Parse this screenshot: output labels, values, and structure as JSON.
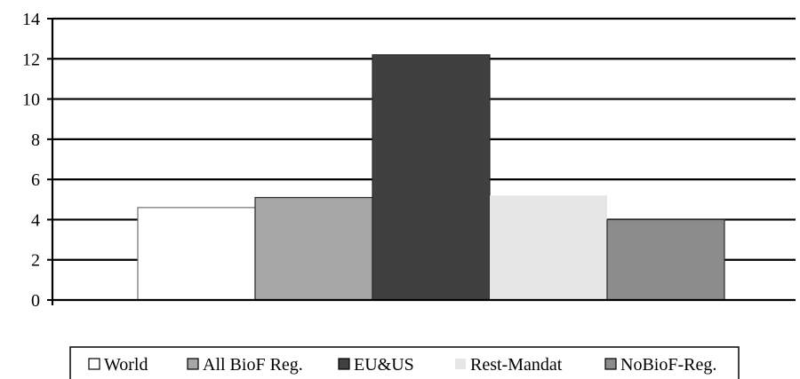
{
  "chart_data": {
    "type": "bar",
    "title": "",
    "xlabel": "",
    "ylabel": "",
    "ylim": [
      0,
      14
    ],
    "yticks": [
      0,
      2,
      4,
      6,
      8,
      10,
      12,
      14
    ],
    "grid": "horizontal major gridlines",
    "legend_position": "bottom",
    "series": [
      {
        "name": "World",
        "value": 4.6,
        "color": "#ffffff"
      },
      {
        "name": "All BioF Reg.",
        "value": 5.1,
        "color": "#a6a6a6"
      },
      {
        "name": "EU&US",
        "value": 12.2,
        "color": "#404040"
      },
      {
        "name": "Rest-Mandat",
        "value": 5.2,
        "color": "#e6e6e6"
      },
      {
        "name": "NoBioF-Reg.",
        "value": 4.0,
        "color": "#8c8c8c"
      }
    ]
  }
}
